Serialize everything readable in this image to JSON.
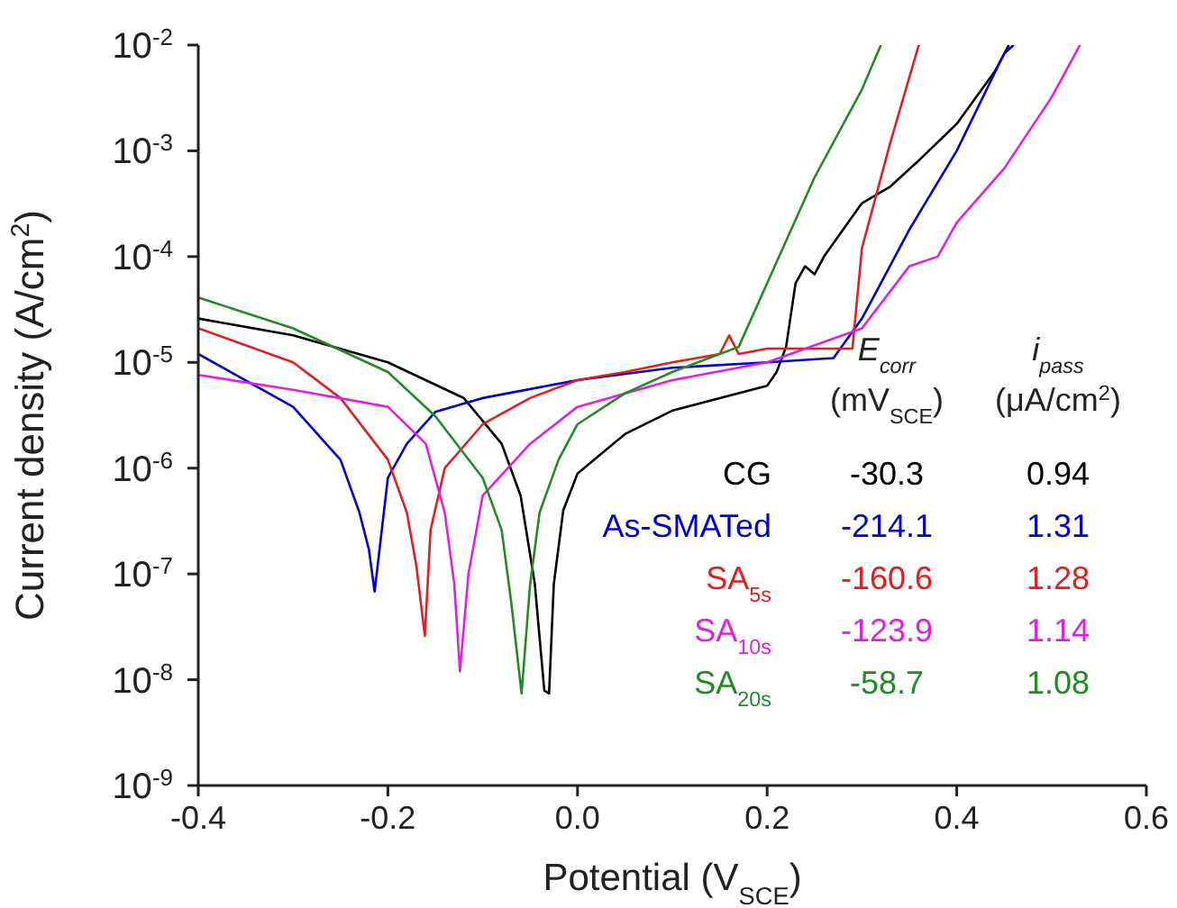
{
  "chart_data": {
    "type": "line",
    "xlabel": "Potential (V$_{SCE}$)",
    "ylabel": "Current density (A/cm$^{2}$)",
    "log": "y",
    "xlim": [
      -0.4,
      0.6
    ],
    "xticks": [
      -0.4,
      -0.2,
      {
        "value": 0,
        "label": "0.0"
      },
      0.2,
      0.4,
      0.6
    ],
    "ylim": [
      1e-09,
      0.01
    ],
    "yticks": [
      {
        "value": 1e-09,
        "label": "10$^{-9}$"
      },
      {
        "value": 1e-08,
        "label": "10$^{-8}$"
      },
      {
        "value": 1e-07,
        "label": "10$^{-7}$"
      },
      {
        "value": 1e-06,
        "label": "10$^{-6}$"
      },
      {
        "value": 1e-05,
        "label": "10$^{-5}$"
      },
      {
        "value": 0.0001,
        "label": "10$^{-4}$"
      },
      {
        "value": 0.001,
        "label": "10$^{-3}$"
      },
      {
        "value": 0.01,
        "label": "10$^{-2}$"
      }
    ],
    "legend": "bottom right",
    "marker": "none",
    "line_style": "solid",
    "annotations": [
      "E$_{corr}$",
      "(mV$_{SCE}$)",
      "i$_{pass}$",
      "(μA/cm$^{2}$)",
      "-30.3",
      "0.94",
      "-214.1",
      "1.31",
      "-160.6",
      "1.28",
      "-123.9",
      "1.14",
      "-58.7",
      "1.08"
    ],
    "series": [
      {
        "name": "CG",
        "color": "#000000",
        "x": [
          -0.4,
          -0.3,
          -0.2,
          -0.12,
          -0.08,
          -0.06,
          -0.045,
          -0.035,
          -0.03,
          -0.025,
          -0.015,
          0,
          0.05,
          0.1,
          0.15,
          0.2,
          0.21,
          0.22,
          0.23,
          0.24,
          0.25,
          0.26,
          0.28,
          0.3,
          0.33,
          0.36,
          0.4,
          0.44,
          0.455
        ],
        "values": [
          2.6e-05,
          1.8e-05,
          1e-05,
          4.6e-06,
          1.7e-06,
          5.5e-07,
          8e-08,
          7.9e-09,
          7.4e-09,
          8e-08,
          4e-07,
          8.9e-07,
          2.1e-06,
          3.5e-06,
          4.6e-06,
          6e-06,
          8.1e-06,
          1.4e-05,
          5.6e-05,
          8.1e-05,
          6.8e-05,
          0.0001,
          0.00018,
          0.00032,
          0.00046,
          0.00081,
          0.0018,
          0.0056,
          0.01
        ]
      },
      {
        "name": "As-SMATed",
        "color": "#0000cc",
        "x": [
          -0.4,
          -0.3,
          -0.25,
          -0.23,
          -0.22,
          -0.214,
          -0.2,
          -0.18,
          -0.15,
          -0.1,
          0,
          0.1,
          0.2,
          0.27,
          0.3,
          0.32,
          0.35,
          0.4,
          0.45,
          0.46
        ],
        "values": [
          1.2e-05,
          3.8e-06,
          1.2e-06,
          3.8e-07,
          1.7e-07,
          6.8e-08,
          8.1e-07,
          1.7e-06,
          3.4e-06,
          4.6e-06,
          6.8e-06,
          8.9e-06,
          1e-05,
          1.1e-05,
          2.6e-05,
          5.6e-05,
          0.00018,
          0.001,
          0.0083,
          0.01
        ]
      },
      {
        "name": "SA$_{5s}$",
        "color": "#dd2020",
        "x": [
          -0.4,
          -0.3,
          -0.25,
          -0.2,
          -0.18,
          -0.17,
          -0.161,
          -0.155,
          -0.14,
          -0.1,
          -0.05,
          0,
          0.05,
          0.1,
          0.15,
          0.16,
          0.17,
          0.2,
          0.29,
          0.3,
          0.33,
          0.36
        ],
        "values": [
          2.1e-05,
          1e-05,
          4.6e-06,
          1.2e-06,
          3.8e-07,
          1.2e-07,
          2.6e-08,
          2.6e-07,
          1e-06,
          2.6e-06,
          4.6e-06,
          6.8e-06,
          8.1e-06,
          1e-05,
          1.2e-05,
          1.8e-05,
          1.2e-05,
          1.35e-05,
          1.35e-05,
          0.00012,
          0.0012,
          0.01
        ]
      },
      {
        "name": "SA$_{10s}$",
        "color": "#e020e0",
        "x": [
          -0.4,
          -0.3,
          -0.2,
          -0.16,
          -0.14,
          -0.13,
          -0.124,
          -0.115,
          -0.1,
          -0.05,
          0,
          0.1,
          0.2,
          0.3,
          0.35,
          0.38,
          0.4,
          0.45,
          0.5,
          0.53
        ],
        "values": [
          7.6e-06,
          5.5e-06,
          3.8e-06,
          1.7e-06,
          3.8e-07,
          8.1e-08,
          1.2e-08,
          1e-07,
          5.5e-07,
          1.7e-06,
          3.8e-06,
          6.8e-06,
          1e-05,
          2.1e-05,
          8.1e-05,
          0.0001,
          0.00021,
          0.00068,
          0.0032,
          0.01
        ]
      },
      {
        "name": "SA$_{20s}$",
        "color": "#228b22",
        "x": [
          -0.4,
          -0.3,
          -0.2,
          -0.15,
          -0.1,
          -0.08,
          -0.07,
          -0.059,
          -0.05,
          -0.04,
          -0.02,
          0,
          0.05,
          0.1,
          0.15,
          0.17,
          0.2,
          0.25,
          0.3,
          0.32
        ],
        "values": [
          4.1e-05,
          2.1e-05,
          8.1e-06,
          3.1e-06,
          8.1e-07,
          2.6e-07,
          5.5e-08,
          7.4e-09,
          8e-08,
          3.8e-07,
          1.2e-06,
          2.6e-06,
          5.1e-06,
          8.1e-06,
          1.2e-05,
          1.4e-05,
          5.6e-05,
          0.00056,
          0.0038,
          0.01
        ]
      }
    ]
  }
}
